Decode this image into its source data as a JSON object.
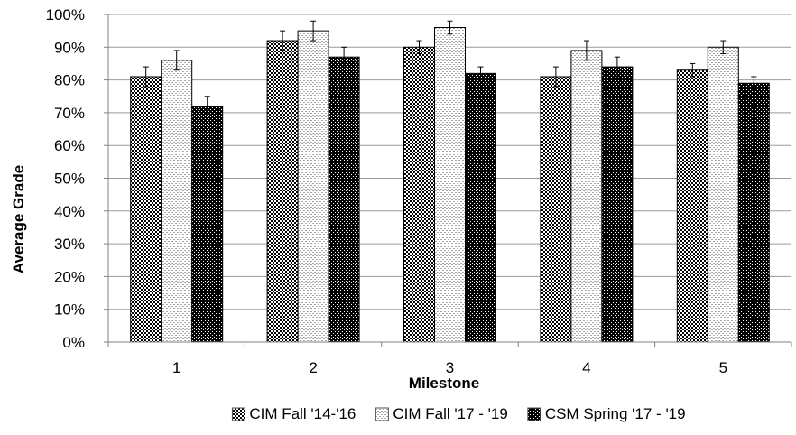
{
  "chart_data": {
    "type": "bar",
    "title": "",
    "xlabel": "Milestone",
    "ylabel": "Average Grade",
    "categories": [
      "1",
      "2",
      "3",
      "4",
      "5"
    ],
    "ylim": [
      0,
      100
    ],
    "yticks": [
      0,
      10,
      20,
      30,
      40,
      50,
      60,
      70,
      80,
      90,
      100
    ],
    "ytick_labels": [
      "0%",
      "10%",
      "20%",
      "30%",
      "40%",
      "50%",
      "60%",
      "70%",
      "80%",
      "90%",
      "100%"
    ],
    "grid": "horizontal",
    "legend_position": "bottom",
    "error_bars": true,
    "series": [
      {
        "name": "CIM Fall '14-'16",
        "values": [
          81,
          92,
          90,
          81,
          83
        ],
        "errors": [
          3,
          3,
          2,
          3,
          2
        ],
        "pattern": "checkered",
        "color": "#000000"
      },
      {
        "name": "CIM Fall '17 - '19",
        "values": [
          86,
          95,
          96,
          89,
          90
        ],
        "errors": [
          3,
          3,
          2,
          3,
          2
        ],
        "pattern": "light-dotted",
        "color": "#9a9a9a"
      },
      {
        "name": "CSM Spring '17 - '19",
        "values": [
          72,
          87,
          82,
          84,
          79
        ],
        "errors": [
          3,
          3,
          2,
          3,
          2
        ],
        "pattern": "dark-dotted",
        "color": "#000000"
      }
    ]
  }
}
